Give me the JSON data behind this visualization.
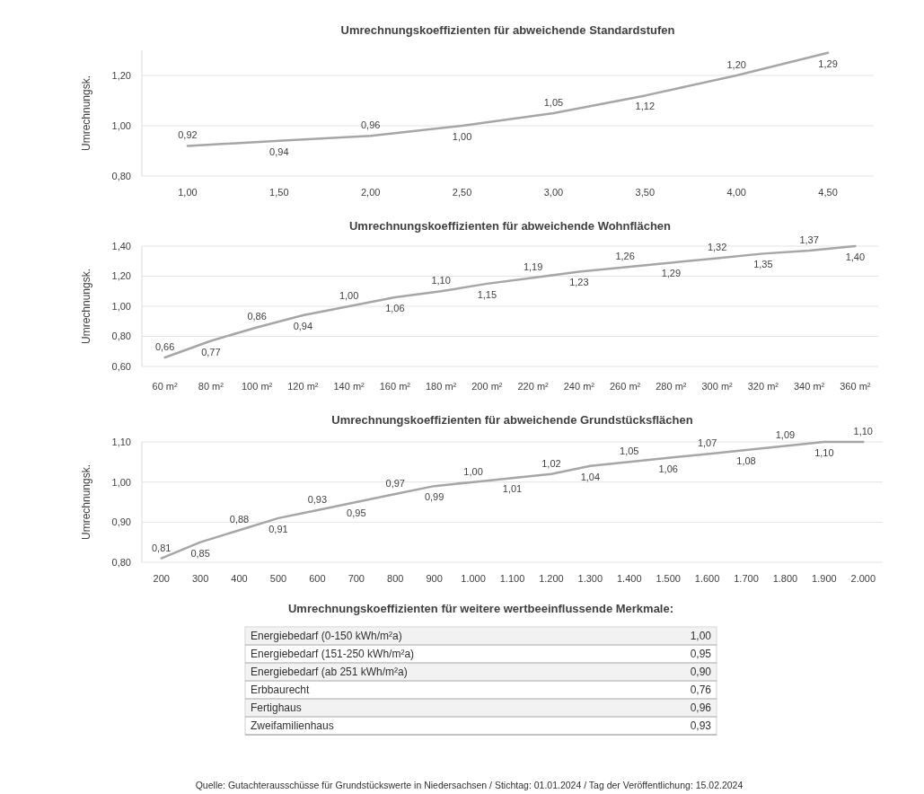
{
  "chart_data": [
    {
      "type": "line",
      "title": "Umrechnungskoeffizienten für abweichende Standardstufen",
      "ylabel": "Umrechnungsk.",
      "categories": [
        "1,00",
        "1,50",
        "2,00",
        "2,50",
        "3,00",
        "3,50",
        "4,00",
        "4,50"
      ],
      "series": [
        {
          "color": "#a6a6a6",
          "values": [
            0.92,
            0.94,
            0.96,
            1.0,
            1.05,
            1.12,
            1.2,
            1.29
          ],
          "value_labels": [
            "0,92",
            "0,94",
            "0,96",
            "1,00",
            "1,05",
            "1,12",
            "1,20",
            "1,29"
          ]
        }
      ],
      "ylim": [
        0.8,
        1.3
      ],
      "yticks": [
        {
          "value": 0.8,
          "label": "0,80"
        },
        {
          "value": 1.0,
          "label": "1,00"
        },
        {
          "value": 1.2,
          "label": "1,20"
        }
      ],
      "grid": "y",
      "marker": "none",
      "line_style": "solid"
    },
    {
      "type": "line",
      "title": "Umrechnungskoeffizienten für abweichende Wohnflächen",
      "ylabel": "Umrechnungsk.",
      "categories": [
        "60 m²",
        "80 m²",
        "100 m²",
        "120 m²",
        "140 m²",
        "160 m²",
        "180 m²",
        "200 m²",
        "220 m²",
        "240 m²",
        "260 m²",
        "280 m²",
        "300 m²",
        "320 m²",
        "340 m²",
        "360 m²"
      ],
      "series": [
        {
          "color": "#a6a6a6",
          "values": [
            0.66,
            0.77,
            0.86,
            0.94,
            1.0,
            1.06,
            1.1,
            1.15,
            1.19,
            1.23,
            1.26,
            1.29,
            1.32,
            1.35,
            1.37,
            1.4
          ],
          "value_labels": [
            "0,66",
            "0,77",
            "0,86",
            "0,94",
            "1,00",
            "1,06",
            "1,10",
            "1,15",
            "1,19",
            "1,23",
            "1,26",
            "1,29",
            "1,32",
            "1,35",
            "1,37",
            "1,40"
          ]
        }
      ],
      "ylim": [
        0.6,
        1.4
      ],
      "yticks": [
        {
          "value": 0.6,
          "label": "0,60"
        },
        {
          "value": 0.8,
          "label": "0,80"
        },
        {
          "value": 1.0,
          "label": "1,00"
        },
        {
          "value": 1.2,
          "label": "1,20"
        },
        {
          "value": 1.4,
          "label": "1,40"
        }
      ],
      "grid": "y",
      "marker": "none",
      "line_style": "solid"
    },
    {
      "type": "line",
      "title": "Umrechnungskoeffizienten für abweichende Grundstücksflächen",
      "ylabel": "Umrechnungsk.",
      "categories": [
        "200",
        "300",
        "400",
        "500",
        "600",
        "700",
        "800",
        "900",
        "1.000",
        "1.100",
        "1.200",
        "1.300",
        "1.400",
        "1.500",
        "1.600",
        "1.700",
        "1.800",
        "1.900",
        "2.000"
      ],
      "series": [
        {
          "color": "#a6a6a6",
          "values": [
            0.81,
            0.85,
            0.88,
            0.91,
            0.93,
            0.95,
            0.97,
            0.99,
            1.0,
            1.01,
            1.02,
            1.04,
            1.05,
            1.06,
            1.07,
            1.08,
            1.09,
            1.1,
            1.1
          ],
          "value_labels": [
            "0,81",
            "0,85",
            "0,88",
            "0,91",
            "0,93",
            "0,95",
            "0,97",
            "0,99",
            "1,00",
            "1,01",
            "1,02",
            "1,04",
            "1,05",
            "1,06",
            "1,07",
            "1,08",
            "1,09",
            "1,10",
            "1,10"
          ]
        }
      ],
      "ylim": [
        0.8,
        1.1
      ],
      "yticks": [
        {
          "value": 0.8,
          "label": "0,80"
        },
        {
          "value": 0.9,
          "label": "0,90"
        },
        {
          "value": 1.0,
          "label": "1,00"
        },
        {
          "value": 1.1,
          "label": "1,10"
        }
      ],
      "grid": "y",
      "marker": "none",
      "line_style": "solid"
    },
    {
      "type": "other",
      "title": "Umrechnungskoeffizienten für weitere wertbeeinflussende Merkmale:",
      "categories": [
        "Energiebedarf (0-150 kWh/m²a)",
        "Energiebedarf (151-250 kWh/m²a)",
        "Energiebedarf (ab 251 kWh/m²a)",
        "Erbbaurecht",
        "Fertighaus",
        "Zweifamilienhaus"
      ],
      "value_labels": [
        "1,00",
        "0,95",
        "0,90",
        "0,76",
        "0,96",
        "0,93"
      ],
      "annotations": [
        "Quelle: Gutachterausschüsse für Grundstückswerte in Niedersachsen / Stichtag: 01.01.2024 / Tag der Veröffentlichung: 15.02.2024"
      ]
    }
  ]
}
